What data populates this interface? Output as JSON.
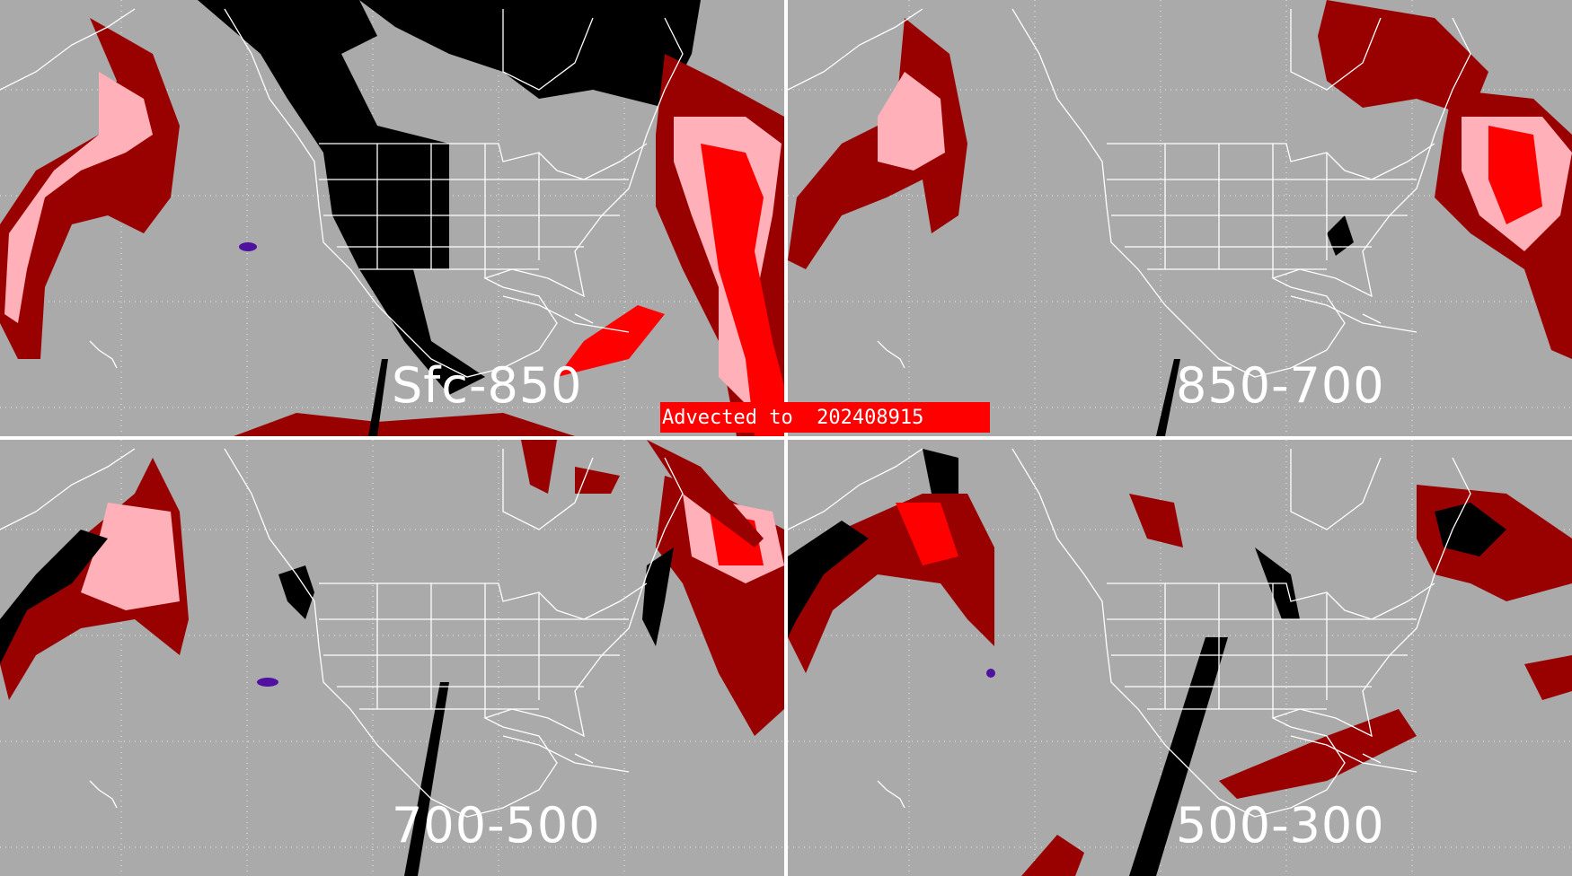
{
  "panels": [
    {
      "label": "Sfc-850"
    },
    {
      "label": "850-700"
    },
    {
      "label": "700-500"
    },
    {
      "label": "500-300"
    }
  ],
  "banner": {
    "text": "Advected to  202408915"
  },
  "colors": {
    "background": "#aaaaaa",
    "dark_red": "#990000",
    "red": "#ff0000",
    "pink": "#ffb0b8",
    "black": "#000000",
    "purple": "#5010a0",
    "outline": "#ffffff"
  }
}
